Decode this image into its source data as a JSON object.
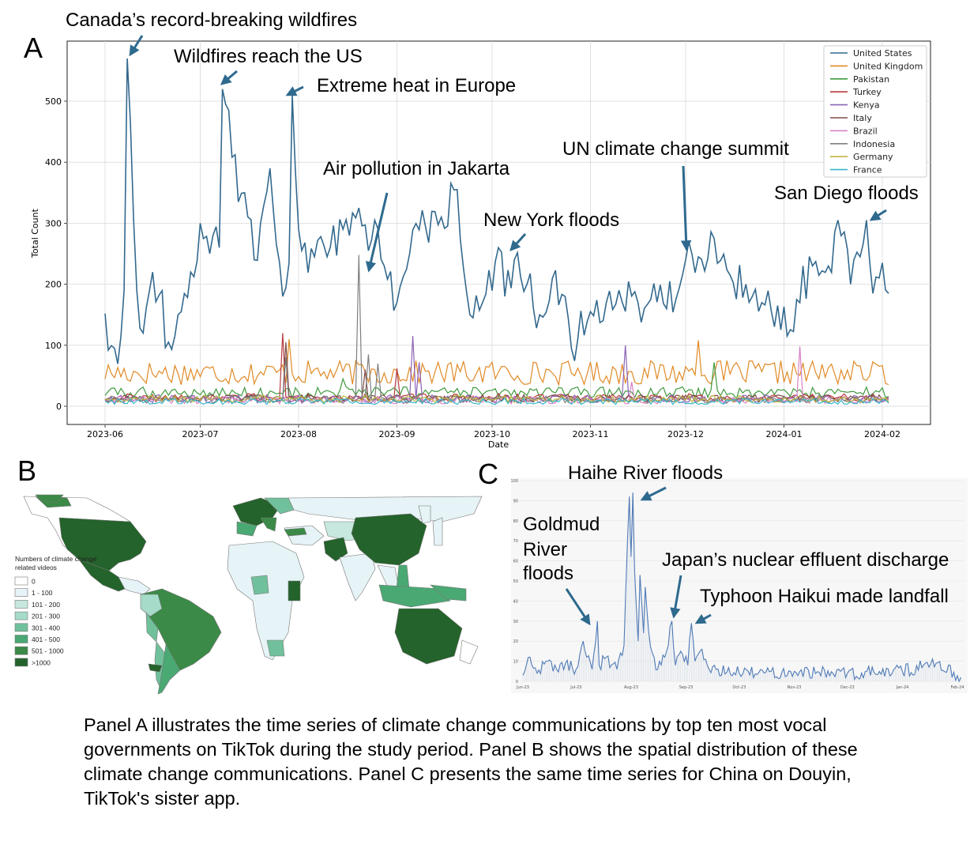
{
  "colors": {
    "United States": "#33698e",
    "United Kingdom": "#e08a26",
    "Pakistan": "#3f9a3f",
    "Turkey": "#b83a3e",
    "Kenya": "#8c63b6",
    "Italy": "#7e4b46",
    "Brazil": "#d980c6",
    "Indonesia": "#7f7f7f",
    "Germany": "#bcb640",
    "France": "#37b7c8",
    "panelC": "#4f7ab6",
    "arrow": "#2e6a8e"
  },
  "chart_data": [
    {
      "panel": "A",
      "type": "line",
      "xlabel": "Date",
      "ylabel": "Total Count",
      "ylim": [
        -30,
        595
      ],
      "yticks": [
        "0",
        "100",
        "200",
        "300",
        "400",
        "500"
      ],
      "xticks": [
        "2023-06",
        "2023-07",
        "2023-08",
        "2023-09",
        "2023-10",
        "2023-11",
        "2023-12",
        "2024-01",
        "2024-02"
      ],
      "x_range": [
        "2023-06-01",
        "2024-02-03"
      ],
      "grid": true,
      "legend_position": "top-right",
      "series": [
        {
          "name": "United States",
          "base": 210,
          "noise": 55,
          "keys": [
            [
              "2023-06-01",
              152
            ],
            [
              "2023-06-02",
              92
            ],
            [
              "2023-06-04",
              95
            ],
            [
              "2023-06-06",
              115
            ],
            [
              "2023-06-07",
              190
            ],
            [
              "2023-06-08",
              570
            ],
            [
              "2023-06-09",
              465
            ],
            [
              "2023-06-11",
              190
            ],
            [
              "2023-06-12",
              128
            ],
            [
              "2023-06-13",
              120
            ],
            [
              "2023-06-16",
              220
            ],
            [
              "2023-06-18",
              182
            ],
            [
              "2023-06-21",
              105
            ],
            [
              "2023-06-23",
              115
            ],
            [
              "2023-06-25",
              155
            ],
            [
              "2023-06-28",
              220
            ],
            [
              "2023-07-01",
              300
            ],
            [
              "2023-07-05",
              280
            ],
            [
              "2023-07-07",
              260
            ],
            [
              "2023-07-08",
              520
            ],
            [
              "2023-07-09",
              495
            ],
            [
              "2023-07-10",
              485
            ],
            [
              "2023-07-13",
              335
            ],
            [
              "2023-07-15",
              350
            ],
            [
              "2023-07-18",
              240
            ],
            [
              "2023-07-23",
              390
            ],
            [
              "2023-07-27",
              180
            ],
            [
              "2023-07-29",
              235
            ],
            [
              "2023-07-30",
              510
            ],
            [
              "2023-07-31",
              385
            ],
            [
              "2023-08-02",
              255
            ],
            [
              "2023-08-06",
              245
            ],
            [
              "2023-08-10",
              245
            ],
            [
              "2023-08-15",
              290
            ],
            [
              "2023-08-20",
              325
            ],
            [
              "2023-08-23",
              255
            ],
            [
              "2023-08-25",
              305
            ],
            [
              "2023-08-28",
              230
            ],
            [
              "2023-09-01",
              170
            ],
            [
              "2023-09-05",
              250
            ],
            [
              "2023-09-10",
              295
            ],
            [
              "2023-09-15",
              310
            ],
            [
              "2023-09-20",
              355
            ],
            [
              "2023-09-23",
              185
            ],
            [
              "2023-09-25",
              145
            ],
            [
              "2023-09-28",
              170
            ],
            [
              "2023-10-03",
              260
            ],
            [
              "2023-10-05",
              180
            ],
            [
              "2023-10-08",
              240
            ],
            [
              "2023-10-12",
              200
            ],
            [
              "2023-10-16",
              150
            ],
            [
              "2023-10-20",
              210
            ],
            [
              "2023-10-24",
              180
            ],
            [
              "2023-10-26",
              95
            ],
            [
              "2023-11-01",
              155
            ],
            [
              "2023-11-06",
              170
            ],
            [
              "2023-11-10",
              190
            ],
            [
              "2023-11-16",
              170
            ],
            [
              "2023-11-20",
              175
            ],
            [
              "2023-11-25",
              160
            ],
            [
              "2023-11-30",
              215
            ],
            [
              "2023-12-01",
              240
            ],
            [
              "2023-12-05",
              245
            ],
            [
              "2023-12-10",
              275
            ],
            [
              "2023-12-15",
              215
            ],
            [
              "2023-12-20",
              200
            ],
            [
              "2023-12-25",
              170
            ],
            [
              "2023-12-30",
              165
            ],
            [
              "2024-01-02",
              115
            ],
            [
              "2024-01-05",
              175
            ],
            [
              "2024-01-10",
              230
            ],
            [
              "2024-01-15",
              230
            ],
            [
              "2024-01-18",
              305
            ],
            [
              "2024-01-22",
              200
            ],
            [
              "2024-01-25",
              245
            ],
            [
              "2024-01-27",
              305
            ],
            [
              "2024-01-29",
              185
            ],
            [
              "2024-02-01",
              235
            ],
            [
              "2024-02-03",
              185
            ]
          ]
        },
        {
          "name": "United Kingdom",
          "base": 55,
          "noise": 20,
          "peaks": [
            [
              "2023-07-29",
              110
            ],
            [
              "2023-12-05",
              108
            ]
          ]
        },
        {
          "name": "Pakistan",
          "base": 22,
          "noise": 10,
          "peaks": [
            [
              "2023-12-10",
              72
            ],
            [
              "2023-08-15",
              45
            ]
          ]
        },
        {
          "name": "Turkey",
          "base": 14,
          "noise": 7,
          "peaks": [
            [
              "2023-07-27",
              120
            ],
            [
              "2023-09-01",
              62
            ]
          ]
        },
        {
          "name": "Kenya",
          "base": 12,
          "noise": 7,
          "peaks": [
            [
              "2023-09-06",
              115
            ],
            [
              "2023-11-12",
              100
            ],
            [
              "2023-09-08",
              72
            ]
          ]
        },
        {
          "name": "Italy",
          "base": 13,
          "noise": 6,
          "peaks": [
            [
              "2023-07-28",
              105
            ],
            [
              "2023-08-22",
              60
            ]
          ]
        },
        {
          "name": "Brazil",
          "base": 10,
          "noise": 6,
          "peaks": [
            [
              "2024-01-06",
              98
            ],
            [
              "2023-11-14",
              40
            ]
          ]
        },
        {
          "name": "Indonesia",
          "base": 11,
          "noise": 6,
          "peaks": [
            [
              "2023-08-20",
              248
            ],
            [
              "2023-08-23",
              85
            ],
            [
              "2023-08-26",
              70
            ],
            [
              "2023-07-28",
              80
            ]
          ]
        },
        {
          "name": "Germany",
          "base": 12,
          "noise": 6,
          "peaks": []
        },
        {
          "name": "France",
          "base": 8,
          "noise": 5,
          "peaks": []
        }
      ]
    },
    {
      "panel": "C",
      "type": "line",
      "ylim": [
        0,
        100
      ],
      "yticks": [
        "0",
        "10",
        "20",
        "30",
        "40",
        "50",
        "60",
        "70",
        "80",
        "90",
        "100"
      ],
      "xticks": [
        "Jun-23",
        "Jul-23",
        "Aug-23",
        "Sep-23",
        "Oct-23",
        "Nov-23",
        "Dec-23",
        "Jan-24",
        "Feb-24"
      ],
      "x_range": [
        "2023-06-01",
        "2024-02-03"
      ],
      "grid": true,
      "series": [
        {
          "name": "",
          "base": 5,
          "noise": 5,
          "keys": [
            [
              "2023-06-01",
              3
            ],
            [
              "2023-06-05",
              12
            ],
            [
              "2023-06-09",
              4
            ],
            [
              "2023-06-14",
              10
            ],
            [
              "2023-06-20",
              6
            ],
            [
              "2023-06-25",
              9
            ],
            [
              "2023-07-01",
              6
            ],
            [
              "2023-07-05",
              20
            ],
            [
              "2023-07-07",
              12
            ],
            [
              "2023-07-10",
              6
            ],
            [
              "2023-07-13",
              30
            ],
            [
              "2023-07-14",
              8
            ],
            [
              "2023-07-18",
              12
            ],
            [
              "2023-07-24",
              6
            ],
            [
              "2023-07-28",
              18
            ],
            [
              "2023-07-30",
              70
            ],
            [
              "2023-07-31",
              92
            ],
            [
              "2023-08-01",
              62
            ],
            [
              "2023-08-02",
              94
            ],
            [
              "2023-08-03",
              55
            ],
            [
              "2023-08-05",
              20
            ],
            [
              "2023-08-06",
              53
            ],
            [
              "2023-08-08",
              24
            ],
            [
              "2023-08-09",
              47
            ],
            [
              "2023-08-11",
              24
            ],
            [
              "2023-08-13",
              14
            ],
            [
              "2023-08-16",
              6
            ],
            [
              "2023-08-20",
              12
            ],
            [
              "2023-08-24",
              30
            ],
            [
              "2023-08-26",
              8
            ],
            [
              "2023-08-29",
              15
            ],
            [
              "2023-09-02",
              8
            ],
            [
              "2023-09-04",
              29
            ],
            [
              "2023-09-06",
              10
            ],
            [
              "2023-09-10",
              16
            ],
            [
              "2023-09-14",
              6
            ],
            [
              "2023-10-01",
              4
            ],
            [
              "2023-11-01",
              5
            ],
            [
              "2023-12-01",
              4
            ],
            [
              "2024-01-01",
              5
            ],
            [
              "2024-01-20",
              9
            ],
            [
              "2024-02-03",
              2
            ]
          ]
        }
      ]
    }
  ],
  "panelA": {
    "letter": "A",
    "annotations": [
      "Canada’s record-breaking wildfires",
      "Wildfires reach the US",
      "Extreme heat in Europe",
      "Air pollution in Jakarta",
      "New York floods",
      "UN climate change summit",
      "San Diego floods"
    ]
  },
  "panelB": {
    "letter": "B",
    "legend_title": [
      "Numbers of climate change",
      "related videos"
    ],
    "legend_items": [
      {
        "label": "0",
        "color": "#ffffff"
      },
      {
        "label": "1 - 100",
        "color": "#e6f3f7"
      },
      {
        "label": "101 - 200",
        "color": "#c6e8df"
      },
      {
        "label": "201 - 300",
        "color": "#a5dbc8"
      },
      {
        "label": "301 - 400",
        "color": "#70c19b"
      },
      {
        "label": "401 - 500",
        "color": "#4aa873"
      },
      {
        "label": "501 - 1000",
        "color": "#3b8a47"
      },
      {
        "label": ">1000",
        "color": "#24632b"
      }
    ]
  },
  "panelC": {
    "letter": "C",
    "annotations": [
      "Haihe River floods",
      "Goldmud",
      "River",
      "floods",
      "Japan’s nuclear effluent discharge",
      "Typhoon Haikui made landfall"
    ]
  },
  "caption": "Panel A illustrates the time series of climate change communications by top ten most vocal governments on TikTok during the study period. Panel B shows the spatial distribution of these climate change communications. Panel C presents the same time series for China on Douyin, TikTok's sister app."
}
